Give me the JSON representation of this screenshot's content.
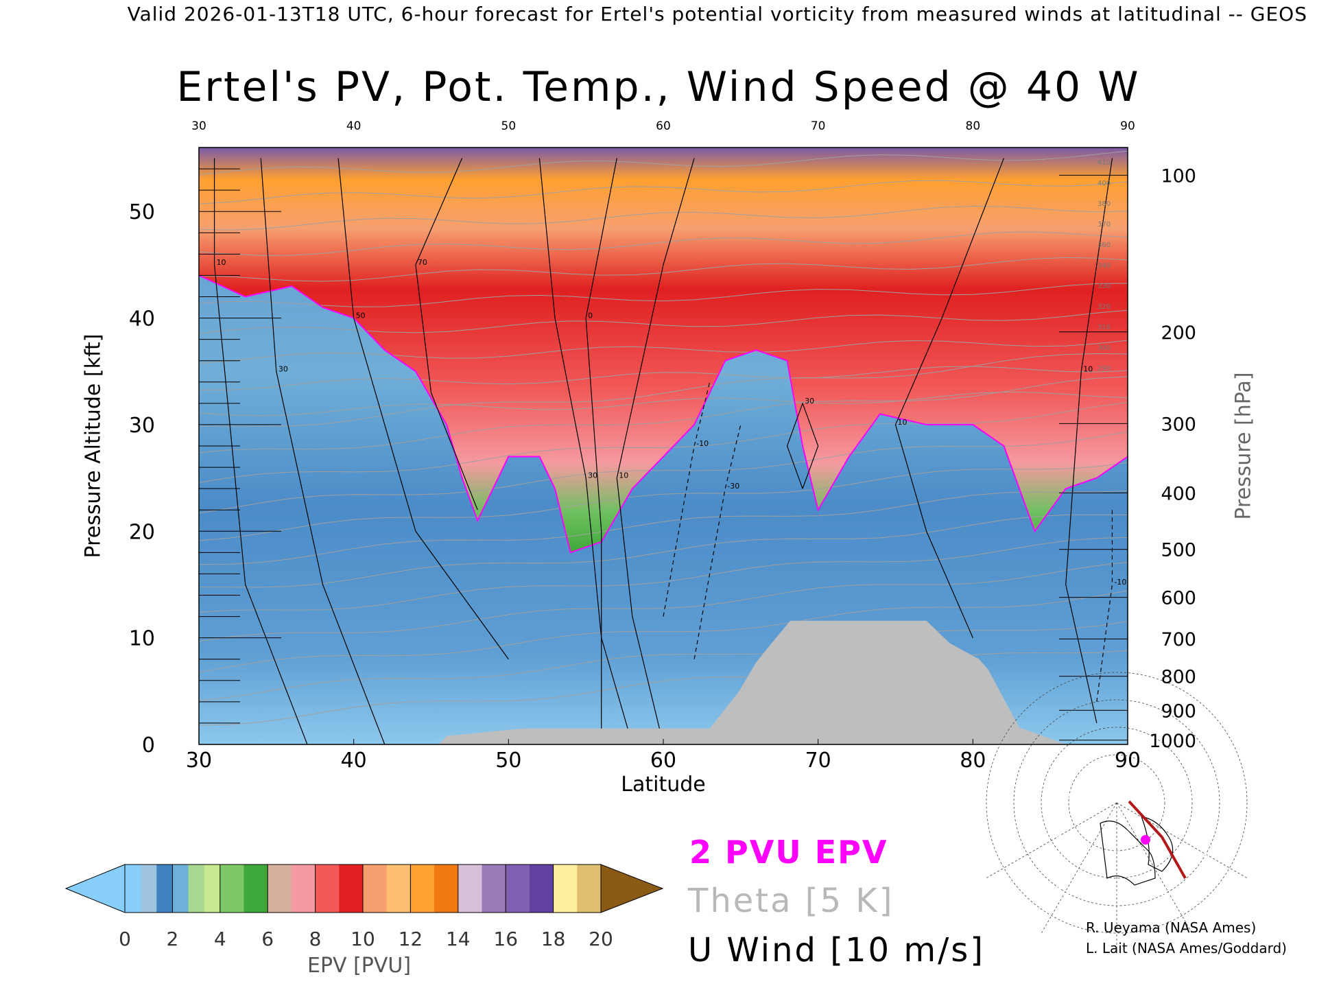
{
  "header": "Valid 2026-01-13T18 UTC, 6-hour forecast for Ertel's potential vorticity from measured winds at latitudinal -- GEOS",
  "chart_data": {
    "type": "heatmap",
    "title": "Ertel's PV, Pot. Temp., Wind Speed @ 40 W",
    "xlabel": "Latitude",
    "ylabel": "Pressure Altitude [kft]",
    "y2label": "Pressure [hPa]",
    "xlim": [
      30,
      90
    ],
    "ylim": [
      0,
      56
    ],
    "x_ticks": [
      "30",
      "40",
      "50",
      "60",
      "70",
      "80",
      "90"
    ],
    "y_ticks": [
      "0",
      "10",
      "20",
      "30",
      "40",
      "50"
    ],
    "pressure_ticks": [
      {
        "label": "100",
        "kft": 53.4
      },
      {
        "label": "200",
        "kft": 38.7
      },
      {
        "label": "300",
        "kft": 30.1
      },
      {
        "label": "400",
        "kft": 23.6
      },
      {
        "label": "500",
        "kft": 18.3
      },
      {
        "label": "600",
        "kft": 13.8
      },
      {
        "label": "700",
        "kft": 9.9
      },
      {
        "label": "800",
        "kft": 6.4
      },
      {
        "label": "900",
        "kft": 3.2
      },
      {
        "label": "1000",
        "kft": 0.4
      }
    ],
    "epv_bands_pvu": [
      {
        "from": 0,
        "to": 2,
        "colors": [
          "#87cefa",
          "#9fc4e0",
          "#3f82c0"
        ]
      },
      {
        "from": 2,
        "to": 4,
        "colors": [
          "#6fb0d8",
          "#a8d890",
          "#c8e890"
        ]
      },
      {
        "from": 4,
        "to": 6,
        "colors": [
          "#7ec868",
          "#3ea83a"
        ]
      },
      {
        "from": 6,
        "to": 8,
        "colors": [
          "#d8b0a0",
          "#f49aa0"
        ]
      },
      {
        "from": 8,
        "to": 10,
        "colors": [
          "#f25a5a",
          "#e02020"
        ]
      },
      {
        "from": 10,
        "to": 12,
        "colors": [
          "#f6a070",
          "#ffbf70"
        ]
      },
      {
        "from": 12,
        "to": 14,
        "colors": [
          "#ffa030",
          "#f07810"
        ]
      },
      {
        "from": 14,
        "to": 16,
        "colors": [
          "#d8c0d8",
          "#9c7ab8"
        ]
      },
      {
        "from": 16,
        "to": 18,
        "colors": [
          "#8060b0",
          "#6040a0"
        ]
      },
      {
        "from": 18,
        "to": 20,
        "colors": [
          "#fff0a0",
          "#e0c070"
        ]
      }
    ],
    "tropopause_2pvu": [
      {
        "lat": 30,
        "kft": 44
      },
      {
        "lat": 33,
        "kft": 42
      },
      {
        "lat": 36,
        "kft": 43
      },
      {
        "lat": 38,
        "kft": 41
      },
      {
        "lat": 40,
        "kft": 40
      },
      {
        "lat": 42,
        "kft": 37
      },
      {
        "lat": 44,
        "kft": 35
      },
      {
        "lat": 46,
        "kft": 30
      },
      {
        "lat": 47,
        "kft": 25
      },
      {
        "lat": 48,
        "kft": 21
      },
      {
        "lat": 50,
        "kft": 27
      },
      {
        "lat": 52,
        "kft": 27
      },
      {
        "lat": 53,
        "kft": 24
      },
      {
        "lat": 54,
        "kft": 18
      },
      {
        "lat": 56,
        "kft": 19
      },
      {
        "lat": 58,
        "kft": 24
      },
      {
        "lat": 60,
        "kft": 27
      },
      {
        "lat": 62,
        "kft": 30
      },
      {
        "lat": 64,
        "kft": 36
      },
      {
        "lat": 66,
        "kft": 37
      },
      {
        "lat": 68,
        "kft": 36
      },
      {
        "lat": 69,
        "kft": 28
      },
      {
        "lat": 70,
        "kft": 22
      },
      {
        "lat": 72,
        "kft": 27
      },
      {
        "lat": 74,
        "kft": 31
      },
      {
        "lat": 77,
        "kft": 30
      },
      {
        "lat": 80,
        "kft": 30
      },
      {
        "lat": 82,
        "kft": 28
      },
      {
        "lat": 84,
        "kft": 20
      },
      {
        "lat": 86,
        "kft": 24
      },
      {
        "lat": 88,
        "kft": 25
      },
      {
        "lat": 90,
        "kft": 27
      }
    ],
    "terrain_kft": [
      {
        "lat": 30,
        "kft": 0
      },
      {
        "lat": 45.5,
        "kft": 0
      },
      {
        "lat": 46,
        "kft": 0.8
      },
      {
        "lat": 51,
        "kft": 1.5
      },
      {
        "lat": 63,
        "kft": 1.5
      },
      {
        "lat": 64.9,
        "kft": 5
      },
      {
        "lat": 66,
        "kft": 7.7
      },
      {
        "lat": 67,
        "kft": 9.5
      },
      {
        "lat": 68.2,
        "kft": 11.6
      },
      {
        "lat": 77,
        "kft": 11.6
      },
      {
        "lat": 78.5,
        "kft": 9.5
      },
      {
        "lat": 80.4,
        "kft": 8
      },
      {
        "lat": 81,
        "kft": 7
      },
      {
        "lat": 82.1,
        "kft": 4
      },
      {
        "lat": 83,
        "kft": 1.6
      },
      {
        "lat": 86,
        "kft": 0
      },
      {
        "lat": 90,
        "kft": 0
      }
    ],
    "u_wind_contours": [
      {
        "label": "10",
        "points": [
          [
            37,
            0
          ],
          [
            33,
            15
          ],
          [
            31,
            45
          ],
          [
            31,
            55
          ]
        ]
      },
      {
        "label": "30",
        "points": [
          [
            42,
            0
          ],
          [
            38,
            15
          ],
          [
            35,
            35
          ],
          [
            34,
            55
          ]
        ]
      },
      {
        "label": "50",
        "points": [
          [
            50,
            8
          ],
          [
            44,
            20
          ],
          [
            40,
            40
          ],
          [
            39,
            55
          ]
        ]
      },
      {
        "label": "70",
        "points": [
          [
            48,
            22
          ],
          [
            45,
            33
          ],
          [
            44,
            45
          ],
          [
            47,
            55
          ]
        ]
      },
      {
        "label": "30",
        "points": [
          [
            58,
            0
          ],
          [
            56,
            10
          ],
          [
            55,
            25
          ],
          [
            53,
            40
          ],
          [
            52,
            55
          ]
        ]
      },
      {
        "label": "10",
        "points": [
          [
            60,
            0
          ],
          [
            58,
            12
          ],
          [
            57,
            25
          ],
          [
            60,
            45
          ],
          [
            62,
            55
          ]
        ]
      },
      {
        "label": "0",
        "points": [
          [
            56,
            0
          ],
          [
            56,
            20
          ],
          [
            55,
            40
          ],
          [
            57,
            55
          ]
        ]
      },
      {
        "label": "10",
        "points": [
          [
            80,
            10
          ],
          [
            77,
            20
          ],
          [
            75,
            30
          ],
          [
            78,
            40
          ],
          [
            82,
            55
          ]
        ]
      },
      {
        "label": "10",
        "points": [
          [
            88,
            2
          ],
          [
            86,
            15
          ],
          [
            87,
            35
          ],
          [
            89,
            55
          ]
        ]
      },
      {
        "label": "30",
        "points": [
          [
            69,
            24
          ],
          [
            68,
            28
          ],
          [
            69,
            32
          ],
          [
            70,
            28
          ],
          [
            69,
            24
          ]
        ]
      }
    ],
    "easterly_dashed": [
      {
        "label": "-10",
        "points": [
          [
            60,
            12
          ],
          [
            61,
            20
          ],
          [
            62,
            28
          ],
          [
            63,
            34
          ]
        ]
      },
      {
        "label": "-30",
        "points": [
          [
            62,
            8
          ],
          [
            63,
            16
          ],
          [
            64,
            24
          ],
          [
            65,
            30
          ]
        ]
      },
      {
        "label": "-10",
        "points": [
          [
            88,
            4
          ],
          [
            89,
            15
          ],
          [
            89,
            22
          ]
        ]
      }
    ],
    "theta_labels": [
      "410",
      "400",
      "380",
      "370",
      "360",
      "340",
      "330",
      "320",
      "310",
      "300",
      "290"
    ]
  },
  "colorbar": {
    "ticks": [
      "0",
      "2",
      "4",
      "6",
      "8",
      "10",
      "12",
      "14",
      "16",
      "18",
      "20"
    ],
    "label": "EPV [PVU]",
    "under_color": "#87cefa",
    "over_color": "#8b5a14"
  },
  "legend": {
    "pv": "2 PVU EPV",
    "theta": "Theta [5 K]",
    "u": "U Wind [10 m/s]"
  },
  "credits": [
    "R. Ueyama (NASA Ames)",
    "L. Lait (NASA Ames/Goddard)"
  ],
  "colors": {
    "tropopause": "#ff00ff",
    "terrain": "#bebebe",
    "theta": "#a0a0a0",
    "map_track": "#b21818",
    "map_point": "#ff00ff"
  }
}
